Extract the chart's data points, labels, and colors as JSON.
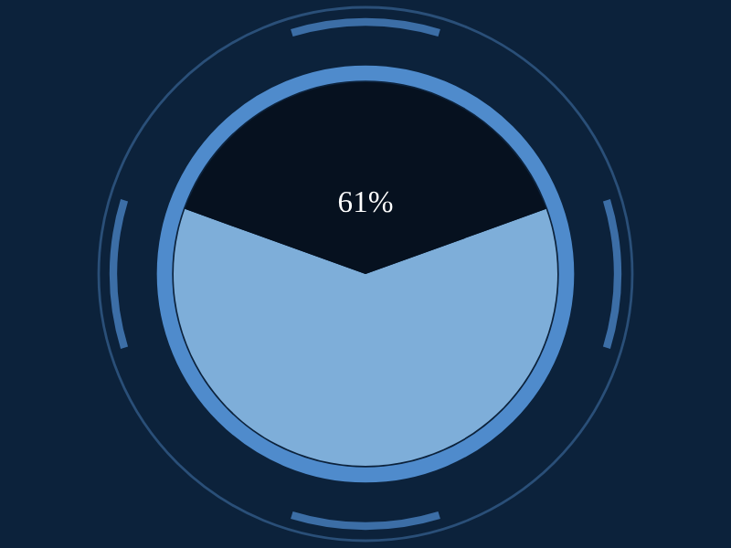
{
  "chart_data": {
    "type": "pie",
    "categories": [
      null,
      null
    ],
    "values": [
      61,
      39
    ],
    "colors": [
      "#7eaed9",
      "#06111f"
    ],
    "annotations": [
      "61%"
    ]
  }
}
